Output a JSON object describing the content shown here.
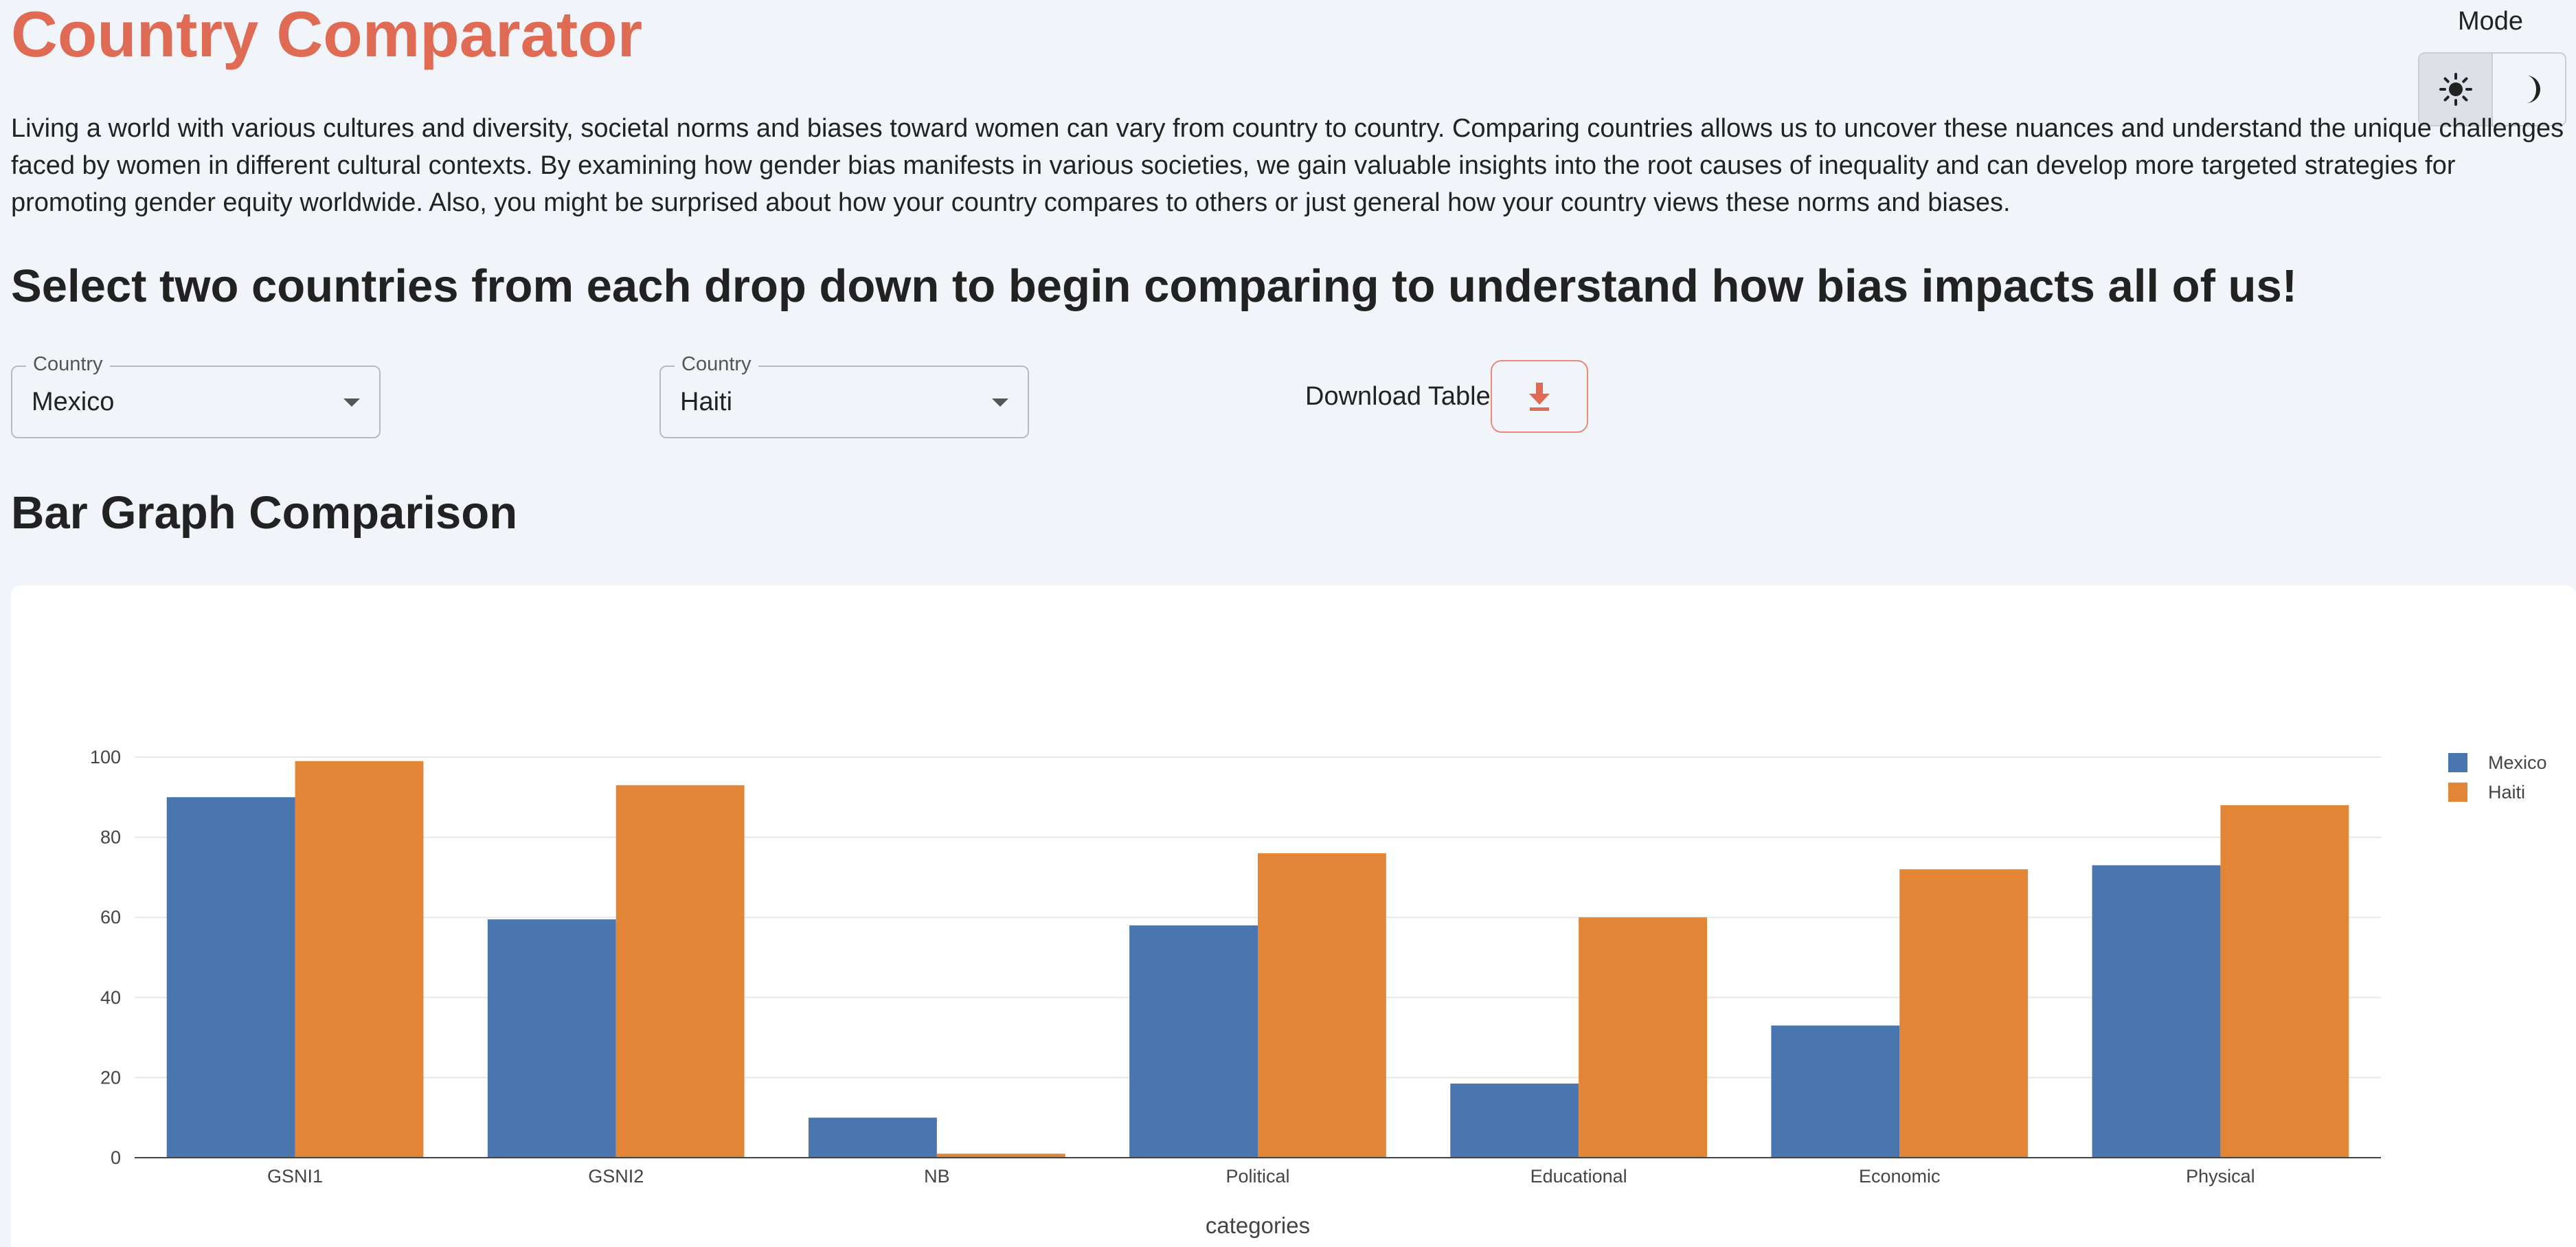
{
  "header": {
    "title": "Country Comparator",
    "mode_label": "Mode",
    "mode_options": [
      "sun-icon",
      "moon-icon"
    ],
    "mode_selected": "light"
  },
  "intro": {
    "text": "Living a world with various cultures and diversity, societal norms and biases toward women can vary from country to country. Comparing countries allows us to uncover these nuances and understand the unique challenges faced by women in different cultural contexts. By examining how gender bias manifests in various societies, we gain valuable insights into the root causes of inequality and can develop more targeted strategies for promoting gender equity worldwide. Also, you might be surprised about how your country compares to others or just general how your country views these norms and biases."
  },
  "subheading": "Select two countries from each drop down to begin comparing to understand how bias impacts all of us!",
  "selectors": {
    "country1": {
      "label": "Country",
      "value": "Mexico"
    },
    "country2": {
      "label": "Country",
      "value": "Haiti"
    }
  },
  "download": {
    "label": "Download Table:",
    "icon": "download-icon"
  },
  "section_title": "Bar Graph Comparison",
  "colors": {
    "accent": "#e06b54",
    "series1": "#4a76b0",
    "series2": "#e38537"
  },
  "chart_data": {
    "type": "bar",
    "categories": [
      "GSNI1",
      "GSNI2",
      "NB",
      "Political",
      "Educational",
      "Economic",
      "Physical"
    ],
    "series": [
      {
        "name": "Mexico",
        "values": [
          90,
          59.5,
          10,
          58,
          18.5,
          33,
          73
        ]
      },
      {
        "name": "Haiti",
        "values": [
          99,
          93,
          1,
          76,
          60,
          72,
          88
        ]
      }
    ],
    "xlabel": "categories",
    "ylabel": "",
    "ylim": [
      0,
      100
    ],
    "yticks": [
      0,
      20,
      40,
      60,
      80,
      100
    ],
    "grid": true,
    "legend": "top-right"
  }
}
